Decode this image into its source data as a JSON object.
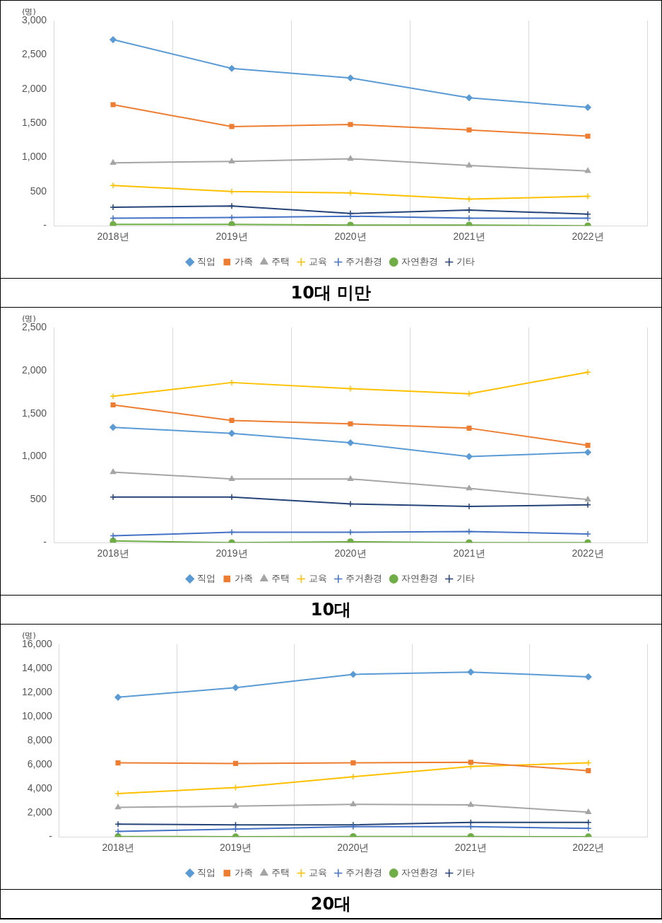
{
  "chart_data": [
    {
      "type": "line",
      "title": "10대 미만",
      "ylabel": "(명)",
      "categories": [
        "2018년",
        "2019년",
        "2020년",
        "2021년",
        "2022년"
      ],
      "ylim": [
        0,
        3000
      ],
      "yticks": [
        {
          "value": 0,
          "label": "-"
        },
        {
          "value": 500,
          "label": "500"
        },
        {
          "value": 1000,
          "label": "1,000"
        },
        {
          "value": 1500,
          "label": "1,500"
        },
        {
          "value": 2000,
          "label": "2,000"
        },
        {
          "value": 2500,
          "label": "2,500"
        },
        {
          "value": 3000,
          "label": "3,000"
        }
      ],
      "grid": "x",
      "legend": "bottom",
      "series": [
        {
          "name": "직업",
          "color": "#5b9bd5",
          "marker": "diamond",
          "values": [
            2720,
            2300,
            2160,
            1870,
            1730
          ]
        },
        {
          "name": "가족",
          "color": "#ed7d31",
          "marker": "square",
          "values": [
            1770,
            1450,
            1480,
            1400,
            1310
          ]
        },
        {
          "name": "주택",
          "color": "#a5a5a5",
          "marker": "triangle",
          "values": [
            920,
            940,
            980,
            880,
            800
          ]
        },
        {
          "name": "교육",
          "color": "#ffc000",
          "marker": "cross",
          "values": [
            590,
            500,
            480,
            390,
            430
          ]
        },
        {
          "name": "주거환경",
          "color": "#4472c4",
          "marker": "cross",
          "values": [
            110,
            120,
            140,
            110,
            110
          ]
        },
        {
          "name": "자연환경",
          "color": "#70ad47",
          "marker": "circle",
          "values": [
            20,
            20,
            10,
            10,
            0
          ]
        },
        {
          "name": "기타",
          "color": "#264478",
          "marker": "cross",
          "values": [
            270,
            290,
            180,
            230,
            170
          ]
        }
      ]
    },
    {
      "type": "line",
      "title": "10대",
      "ylabel": "(명)",
      "categories": [
        "2018년",
        "2019년",
        "2020년",
        "2021년",
        "2022년"
      ],
      "ylim": [
        0,
        2500
      ],
      "yticks": [
        {
          "value": 0,
          "label": "-"
        },
        {
          "value": 500,
          "label": "500"
        },
        {
          "value": 1000,
          "label": "1,000"
        },
        {
          "value": 1500,
          "label": "1,500"
        },
        {
          "value": 2000,
          "label": "2,000"
        },
        {
          "value": 2500,
          "label": "2,500"
        }
      ],
      "grid": "x",
      "legend": "bottom",
      "series": [
        {
          "name": "직업",
          "color": "#5b9bd5",
          "marker": "diamond",
          "values": [
            1340,
            1270,
            1160,
            1000,
            1050
          ]
        },
        {
          "name": "가족",
          "color": "#ed7d31",
          "marker": "square",
          "values": [
            1600,
            1420,
            1380,
            1330,
            1130
          ]
        },
        {
          "name": "주택",
          "color": "#a5a5a5",
          "marker": "triangle",
          "values": [
            820,
            740,
            740,
            630,
            500
          ]
        },
        {
          "name": "교육",
          "color": "#ffc000",
          "marker": "cross",
          "values": [
            1700,
            1860,
            1790,
            1730,
            1980
          ]
        },
        {
          "name": "주거환경",
          "color": "#4472c4",
          "marker": "cross",
          "values": [
            80,
            120,
            120,
            130,
            100
          ]
        },
        {
          "name": "자연환경",
          "color": "#70ad47",
          "marker": "circle",
          "values": [
            20,
            0,
            10,
            0,
            0
          ]
        },
        {
          "name": "기타",
          "color": "#264478",
          "marker": "cross",
          "values": [
            530,
            530,
            450,
            420,
            440
          ]
        }
      ]
    },
    {
      "type": "line",
      "title": "20대",
      "ylabel": "(명)",
      "categories": [
        "2018년",
        "2019년",
        "2020년",
        "2021년",
        "2022년"
      ],
      "ylim": [
        0,
        16000
      ],
      "yticks": [
        {
          "value": 0,
          "label": "-"
        },
        {
          "value": 2000,
          "label": "2,000"
        },
        {
          "value": 4000,
          "label": "4,000"
        },
        {
          "value": 6000,
          "label": "6,000"
        },
        {
          "value": 8000,
          "label": "8,000"
        },
        {
          "value": 10000,
          "label": "10,000"
        },
        {
          "value": 12000,
          "label": "12,000"
        },
        {
          "value": 14000,
          "label": "14,000"
        },
        {
          "value": 16000,
          "label": "16,000"
        }
      ],
      "grid": "x",
      "legend": "bottom",
      "series": [
        {
          "name": "직업",
          "color": "#5b9bd5",
          "marker": "diamond",
          "values": [
            11600,
            12400,
            13500,
            13700,
            13300
          ]
        },
        {
          "name": "가족",
          "color": "#ed7d31",
          "marker": "square",
          "values": [
            6150,
            6100,
            6150,
            6200,
            5500
          ]
        },
        {
          "name": "주택",
          "color": "#a5a5a5",
          "marker": "triangle",
          "values": [
            2450,
            2550,
            2700,
            2650,
            2050
          ]
        },
        {
          "name": "교육",
          "color": "#ffc000",
          "marker": "cross",
          "values": [
            3600,
            4100,
            5000,
            5850,
            6150
          ]
        },
        {
          "name": "주거환경",
          "color": "#4472c4",
          "marker": "cross",
          "values": [
            450,
            650,
            850,
            850,
            700
          ]
        },
        {
          "name": "자연환경",
          "color": "#70ad47",
          "marker": "circle",
          "values": [
            30,
            10,
            30,
            30,
            10
          ]
        },
        {
          "name": "기타",
          "color": "#264478",
          "marker": "cross",
          "values": [
            1050,
            1000,
            1000,
            1200,
            1200
          ]
        }
      ]
    }
  ]
}
